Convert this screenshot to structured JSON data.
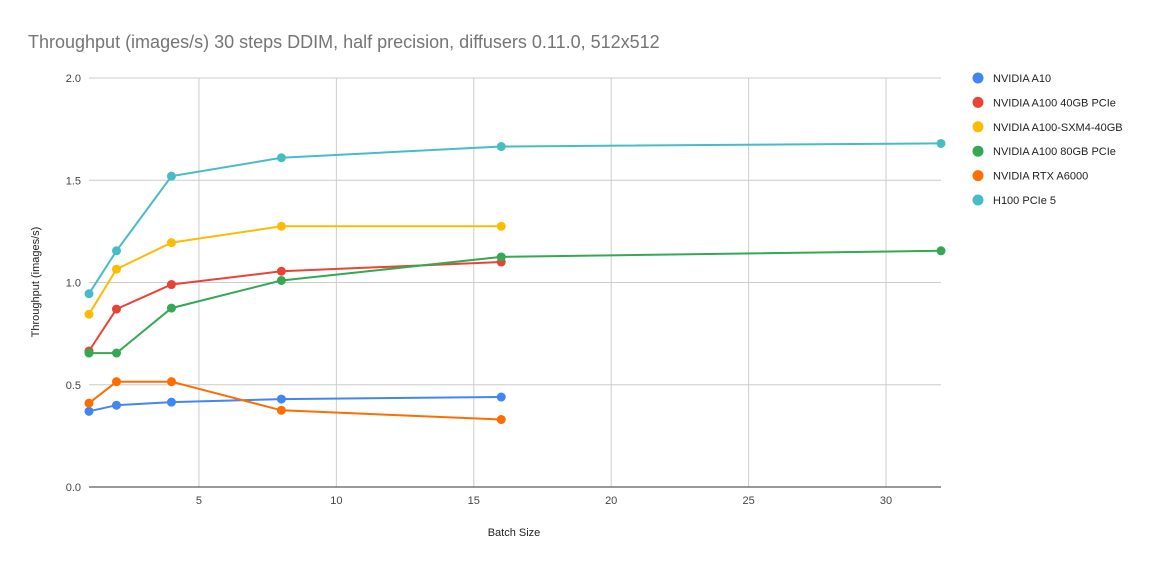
{
  "chart_data": {
    "type": "line",
    "title": "Throughput (images/s) 30 steps DDIM, half precision, diffusers 0.11.0, 512x512",
    "xlabel": "Batch Size",
    "ylabel": "Throughput (images/s)",
    "xlim": [
      1,
      32
    ],
    "ylim": [
      0,
      2.0
    ],
    "x_ticks": [
      5,
      10,
      15,
      20,
      25,
      30
    ],
    "x_tick_labels": [
      "5",
      "10",
      "15",
      "20",
      "25",
      "30"
    ],
    "y_ticks": [
      0,
      0.5,
      1.0,
      1.5,
      2.0
    ],
    "y_tick_labels": [
      "0.0",
      "0.5",
      "1.0",
      "1.5",
      "2.0"
    ],
    "grid": true,
    "legend_position": "right",
    "series": [
      {
        "name": "NVIDIA A10",
        "color": "#4285F4",
        "x": [
          1,
          2,
          4,
          8,
          16
        ],
        "y": [
          0.37,
          0.4,
          0.415,
          0.43,
          0.44
        ]
      },
      {
        "name": "NVIDIA A100 40GB PCIe",
        "color": "#EA4335",
        "x": [
          1,
          2,
          4,
          8,
          16
        ],
        "y": [
          0.665,
          0.87,
          0.99,
          1.055,
          1.1
        ]
      },
      {
        "name": "NVIDIA A100-SXM4-40GB",
        "color": "#FBBC04",
        "x": [
          1,
          2,
          4,
          8,
          16
        ],
        "y": [
          0.845,
          1.065,
          1.195,
          1.275,
          1.275
        ]
      },
      {
        "name": "NVIDIA A100 80GB PCIe",
        "color": "#34A853",
        "x": [
          1,
          2,
          4,
          8,
          16,
          32
        ],
        "y": [
          0.655,
          0.655,
          0.875,
          1.01,
          1.125,
          1.155
        ]
      },
      {
        "name": "NVIDIA RTX A6000",
        "color": "#FF6D01",
        "x": [
          1,
          2,
          4,
          8,
          16
        ],
        "y": [
          0.41,
          0.515,
          0.515,
          0.375,
          0.33
        ]
      },
      {
        "name": "H100 PCIe 5",
        "color": "#46BDC6",
        "x": [
          1,
          2,
          4,
          8,
          16,
          32
        ],
        "y": [
          0.945,
          1.155,
          1.52,
          1.61,
          1.665,
          1.68
        ]
      }
    ]
  }
}
